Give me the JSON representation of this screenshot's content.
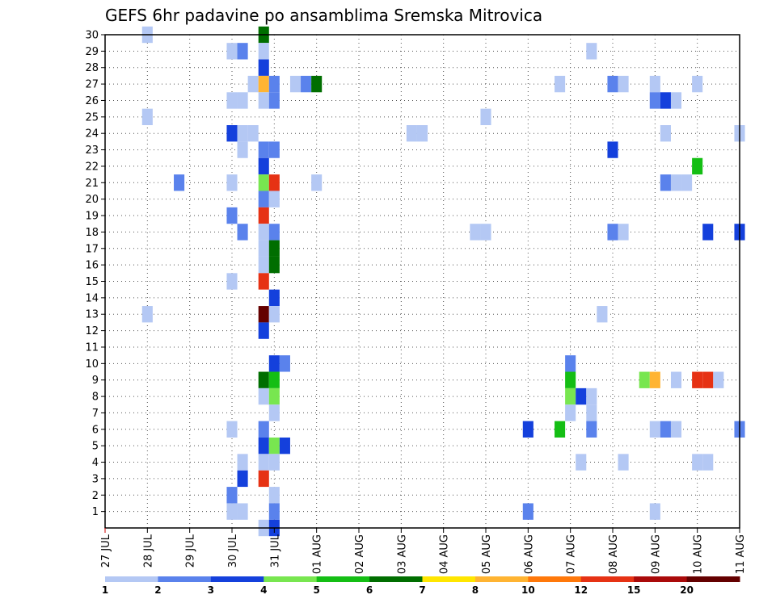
{
  "chart_data": {
    "type": "heatmap",
    "title": "GEFS 6hr padavine po ansamblima Sremska Mitrovica",
    "x_tick_labels": [
      "27 JUL",
      "28 JUL",
      "29 JUL",
      "30 JUL",
      "31 JUL",
      "01 AUG",
      "02 AUG",
      "03 AUG",
      "04 AUG",
      "05 AUG",
      "06 AUG",
      "07 AUG",
      "08 AUG",
      "09 AUG",
      "10 AUG",
      "11 AUG"
    ],
    "y_tick_labels": [
      "1",
      "2",
      "3",
      "4",
      "5",
      "6",
      "7",
      "8",
      "9",
      "10",
      "11",
      "12",
      "13",
      "14",
      "15",
      "16",
      "17",
      "18",
      "19",
      "20",
      "21",
      "22",
      "23",
      "24",
      "25",
      "26",
      "27",
      "28",
      "29",
      "30"
    ],
    "y_range": [
      0,
      30
    ],
    "x_range_days": [
      0,
      15
    ],
    "grid": true,
    "colorbar": {
      "labels": [
        "1",
        "2",
        "3",
        "4",
        "5",
        "6",
        "7",
        "8",
        "10",
        "12",
        "15",
        "20"
      ],
      "colors": [
        "#b4c8f4",
        "#5a82ec",
        "#1440dc",
        "#78e650",
        "#14be14",
        "#006e00",
        "#ffe600",
        "#ffb432",
        "#ff780a",
        "#e63214",
        "#aa0a0a",
        "#640000"
      ]
    },
    "cells": [
      {
        "day": 1.0,
        "member": 30,
        "cls": 0
      },
      {
        "day": 3.75,
        "member": 30,
        "cls": 5
      },
      {
        "day": 3.0,
        "member": 29,
        "cls": 0
      },
      {
        "day": 3.25,
        "member": 29,
        "cls": 1
      },
      {
        "day": 3.75,
        "member": 29,
        "cls": 0
      },
      {
        "day": 11.5,
        "member": 29,
        "cls": 0
      },
      {
        "day": 3.75,
        "member": 28,
        "cls": 2
      },
      {
        "day": 3.5,
        "member": 27,
        "cls": 0
      },
      {
        "day": 3.75,
        "member": 27,
        "cls": 7
      },
      {
        "day": 4.0,
        "member": 27,
        "cls": 1
      },
      {
        "day": 4.5,
        "member": 27,
        "cls": 0
      },
      {
        "day": 4.75,
        "member": 27,
        "cls": 1
      },
      {
        "day": 5.0,
        "member": 27,
        "cls": 5
      },
      {
        "day": 10.75,
        "member": 27,
        "cls": 0
      },
      {
        "day": 12.0,
        "member": 27,
        "cls": 1
      },
      {
        "day": 12.25,
        "member": 27,
        "cls": 0
      },
      {
        "day": 13.0,
        "member": 27,
        "cls": 0
      },
      {
        "day": 14.0,
        "member": 27,
        "cls": 0
      },
      {
        "day": 3.0,
        "member": 26,
        "cls": 0
      },
      {
        "day": 3.25,
        "member": 26,
        "cls": 0
      },
      {
        "day": 3.75,
        "member": 26,
        "cls": 0
      },
      {
        "day": 4.0,
        "member": 26,
        "cls": 1
      },
      {
        "day": 13.0,
        "member": 26,
        "cls": 1
      },
      {
        "day": 13.25,
        "member": 26,
        "cls": 2
      },
      {
        "day": 13.5,
        "member": 26,
        "cls": 0
      },
      {
        "day": 1.0,
        "member": 25,
        "cls": 0
      },
      {
        "day": 9.0,
        "member": 25,
        "cls": 0
      },
      {
        "day": 3.0,
        "member": 24,
        "cls": 2
      },
      {
        "day": 3.25,
        "member": 24,
        "cls": 0
      },
      {
        "day": 3.5,
        "member": 24,
        "cls": 0
      },
      {
        "day": 7.25,
        "member": 24,
        "cls": 0
      },
      {
        "day": 7.5,
        "member": 24,
        "cls": 0
      },
      {
        "day": 13.25,
        "member": 24,
        "cls": 0
      },
      {
        "day": 15.0,
        "member": 24,
        "cls": 0
      },
      {
        "day": 3.25,
        "member": 23,
        "cls": 0
      },
      {
        "day": 3.75,
        "member": 23,
        "cls": 1
      },
      {
        "day": 4.0,
        "member": 23,
        "cls": 1
      },
      {
        "day": 12.0,
        "member": 23,
        "cls": 2
      },
      {
        "day": 3.75,
        "member": 22,
        "cls": 2
      },
      {
        "day": 14.0,
        "member": 22,
        "cls": 4
      },
      {
        "day": 1.75,
        "member": 21,
        "cls": 1
      },
      {
        "day": 3.0,
        "member": 21,
        "cls": 0
      },
      {
        "day": 3.75,
        "member": 21,
        "cls": 3
      },
      {
        "day": 4.0,
        "member": 21,
        "cls": 9
      },
      {
        "day": 5.0,
        "member": 21,
        "cls": 0
      },
      {
        "day": 13.25,
        "member": 21,
        "cls": 1
      },
      {
        "day": 13.5,
        "member": 21,
        "cls": 0
      },
      {
        "day": 13.75,
        "member": 21,
        "cls": 0
      },
      {
        "day": 3.75,
        "member": 20,
        "cls": 1
      },
      {
        "day": 4.0,
        "member": 20,
        "cls": 0
      },
      {
        "day": 3.0,
        "member": 19,
        "cls": 1
      },
      {
        "day": 3.75,
        "member": 19,
        "cls": 9
      },
      {
        "day": 3.25,
        "member": 18,
        "cls": 1
      },
      {
        "day": 3.75,
        "member": 18,
        "cls": 0
      },
      {
        "day": 4.0,
        "member": 18,
        "cls": 1
      },
      {
        "day": 8.75,
        "member": 18,
        "cls": 0
      },
      {
        "day": 9.0,
        "member": 18,
        "cls": 0
      },
      {
        "day": 12.0,
        "member": 18,
        "cls": 1
      },
      {
        "day": 12.25,
        "member": 18,
        "cls": 0
      },
      {
        "day": 14.25,
        "member": 18,
        "cls": 2
      },
      {
        "day": 15.0,
        "member": 18,
        "cls": 2
      },
      {
        "day": 3.75,
        "member": 17,
        "cls": 0
      },
      {
        "day": 4.0,
        "member": 17,
        "cls": 5
      },
      {
        "day": 3.75,
        "member": 16,
        "cls": 0
      },
      {
        "day": 4.0,
        "member": 16,
        "cls": 5
      },
      {
        "day": 3.0,
        "member": 15,
        "cls": 0
      },
      {
        "day": 3.75,
        "member": 15,
        "cls": 9
      },
      {
        "day": 4.0,
        "member": 14,
        "cls": 2
      },
      {
        "day": 1.0,
        "member": 13,
        "cls": 0
      },
      {
        "day": 3.75,
        "member": 13,
        "cls": 11
      },
      {
        "day": 4.0,
        "member": 13,
        "cls": 0
      },
      {
        "day": 11.75,
        "member": 13,
        "cls": 0
      },
      {
        "day": 3.75,
        "member": 12,
        "cls": 2
      },
      {
        "day": 4.0,
        "member": 10,
        "cls": 2
      },
      {
        "day": 4.25,
        "member": 10,
        "cls": 1
      },
      {
        "day": 11.0,
        "member": 10,
        "cls": 1
      },
      {
        "day": 3.75,
        "member": 9,
        "cls": 5
      },
      {
        "day": 4.0,
        "member": 9,
        "cls": 4
      },
      {
        "day": 11.0,
        "member": 9,
        "cls": 4
      },
      {
        "day": 12.75,
        "member": 9,
        "cls": 3
      },
      {
        "day": 13.0,
        "member": 9,
        "cls": 7
      },
      {
        "day": 13.5,
        "member": 9,
        "cls": 0
      },
      {
        "day": 14.0,
        "member": 9,
        "cls": 9
      },
      {
        "day": 14.25,
        "member": 9,
        "cls": 9
      },
      {
        "day": 14.5,
        "member": 9,
        "cls": 0
      },
      {
        "day": 3.75,
        "member": 8,
        "cls": 0
      },
      {
        "day": 4.0,
        "member": 8,
        "cls": 3
      },
      {
        "day": 11.0,
        "member": 8,
        "cls": 3
      },
      {
        "day": 11.25,
        "member": 8,
        "cls": 2
      },
      {
        "day": 11.5,
        "member": 8,
        "cls": 0
      },
      {
        "day": 4.0,
        "member": 7,
        "cls": 0
      },
      {
        "day": 11.0,
        "member": 7,
        "cls": 0
      },
      {
        "day": 11.5,
        "member": 7,
        "cls": 0
      },
      {
        "day": 3.0,
        "member": 6,
        "cls": 0
      },
      {
        "day": 3.75,
        "member": 6,
        "cls": 1
      },
      {
        "day": 10.0,
        "member": 6,
        "cls": 2
      },
      {
        "day": 10.75,
        "member": 6,
        "cls": 4
      },
      {
        "day": 11.5,
        "member": 6,
        "cls": 1
      },
      {
        "day": 13.0,
        "member": 6,
        "cls": 0
      },
      {
        "day": 13.25,
        "member": 6,
        "cls": 1
      },
      {
        "day": 13.5,
        "member": 6,
        "cls": 0
      },
      {
        "day": 15.0,
        "member": 6,
        "cls": 1
      },
      {
        "day": 3.75,
        "member": 5,
        "cls": 2
      },
      {
        "day": 4.0,
        "member": 5,
        "cls": 3
      },
      {
        "day": 4.25,
        "member": 5,
        "cls": 2
      },
      {
        "day": 3.25,
        "member": 4,
        "cls": 0
      },
      {
        "day": 3.75,
        "member": 4,
        "cls": 0
      },
      {
        "day": 4.0,
        "member": 4,
        "cls": 0
      },
      {
        "day": 11.25,
        "member": 4,
        "cls": 0
      },
      {
        "day": 12.25,
        "member": 4,
        "cls": 0
      },
      {
        "day": 14.0,
        "member": 4,
        "cls": 0
      },
      {
        "day": 14.25,
        "member": 4,
        "cls": 0
      },
      {
        "day": 3.25,
        "member": 3,
        "cls": 2
      },
      {
        "day": 3.75,
        "member": 3,
        "cls": 9
      },
      {
        "day": 3.0,
        "member": 2,
        "cls": 1
      },
      {
        "day": 4.0,
        "member": 2,
        "cls": 0
      },
      {
        "day": 3.0,
        "member": 1,
        "cls": 0
      },
      {
        "day": 3.25,
        "member": 1,
        "cls": 0
      },
      {
        "day": 4.0,
        "member": 1,
        "cls": 1
      },
      {
        "day": 10.0,
        "member": 1,
        "cls": 1
      },
      {
        "day": 13.0,
        "member": 1,
        "cls": 0
      },
      {
        "day": 3.75,
        "member": 0,
        "cls": 0
      },
      {
        "day": 4.0,
        "member": 0,
        "cls": 2
      }
    ]
  }
}
